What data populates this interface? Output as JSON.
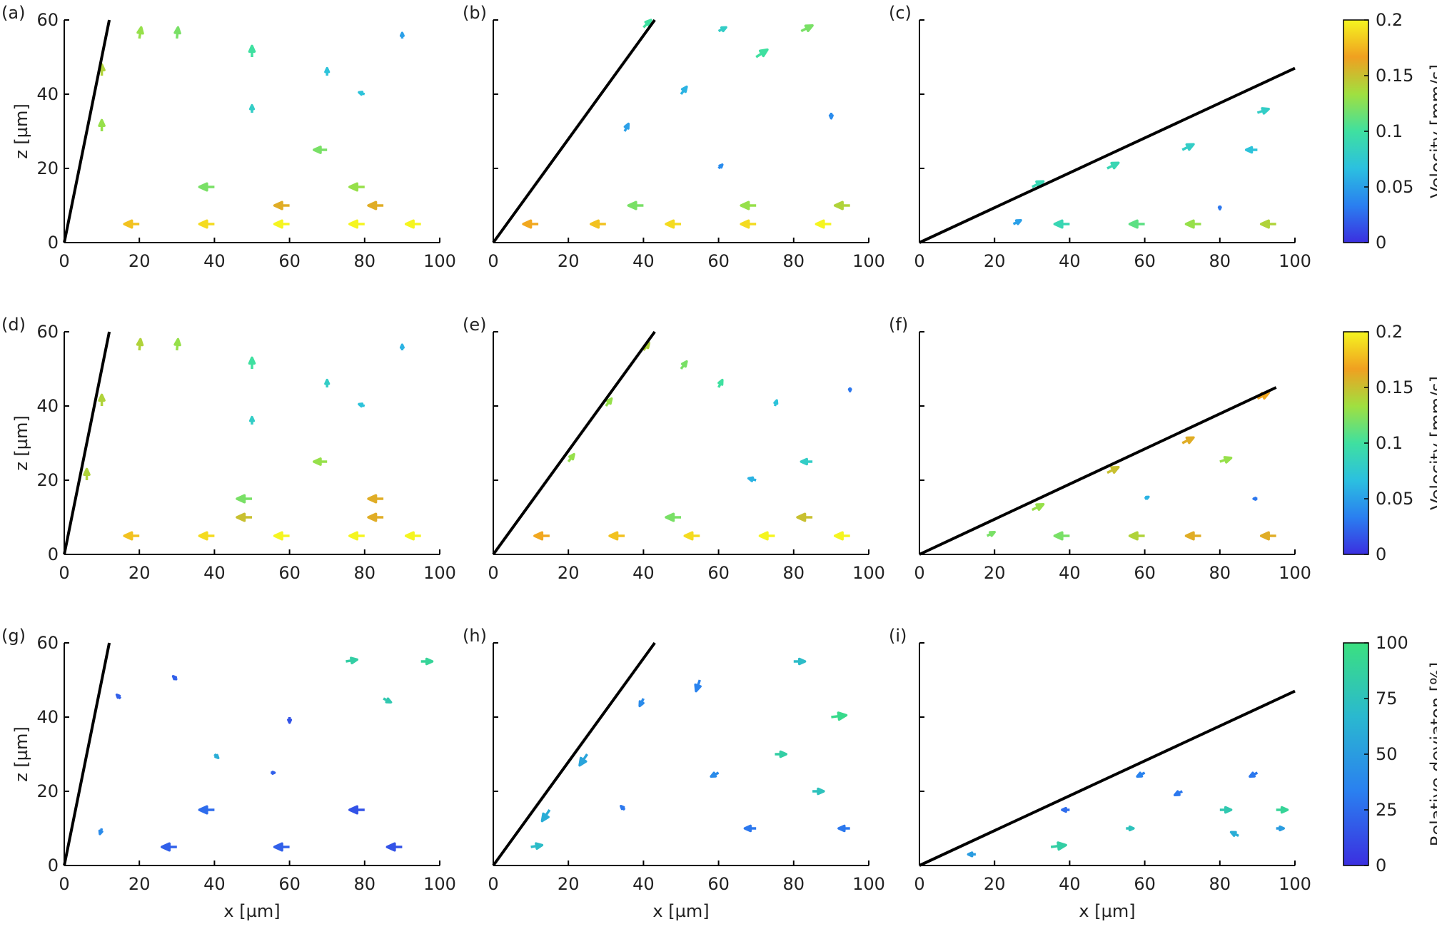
{
  "chart_data": [
    {
      "type": "quiver",
      "label": "(a)",
      "ylabel": "z [µm]",
      "xlim": [
        0,
        100
      ],
      "ylim": [
        0,
        60
      ],
      "xticks": [
        0,
        20,
        40,
        60,
        80,
        100
      ],
      "yticks": [
        0,
        20,
        40,
        60
      ],
      "ytick_labels": true,
      "wall": [
        [
          0,
          0
        ],
        [
          12,
          60
        ]
      ],
      "wall_color": "#000000",
      "colorbar": 0,
      "arrows": [
        [
          20,
          5,
          -4,
          0,
          0.18
        ],
        [
          40,
          5,
          -4,
          0,
          0.19
        ],
        [
          60,
          5,
          -4,
          0,
          0.2
        ],
        [
          80,
          5,
          -4,
          0,
          0.2
        ],
        [
          95,
          5,
          -4,
          0,
          0.2
        ],
        [
          60,
          10,
          -4,
          0,
          0.16
        ],
        [
          85,
          10,
          -4,
          0,
          0.16
        ],
        [
          40,
          15,
          -4,
          0,
          0.12
        ],
        [
          80,
          15,
          -4,
          0,
          0.13
        ],
        [
          70,
          25,
          -3.5,
          0,
          0.12
        ],
        [
          10,
          30,
          0,
          3,
          0.13
        ],
        [
          10,
          45,
          0,
          3,
          0.14
        ],
        [
          20,
          55,
          0.5,
          3,
          0.13
        ],
        [
          30,
          55,
          0.3,
          3,
          0.12
        ],
        [
          50,
          50,
          0,
          3,
          0.1
        ],
        [
          70,
          45,
          0,
          2,
          0.07
        ],
        [
          90,
          55,
          0,
          1.5,
          0.05
        ],
        [
          50,
          35,
          0,
          2,
          0.08
        ],
        [
          80,
          40,
          -1.5,
          0.5,
          0.07
        ]
      ]
    },
    {
      "type": "quiver",
      "label": "(b)",
      "xlim": [
        0,
        100
      ],
      "ylim": [
        0,
        60
      ],
      "xticks": [
        0,
        20,
        40,
        60,
        80,
        100
      ],
      "yticks": [
        0,
        20,
        40,
        60
      ],
      "ytick_labels": false,
      "wall": [
        [
          0,
          0
        ],
        [
          43,
          60
        ]
      ],
      "wall_color": "#000000",
      "colorbar": 0,
      "arrows": [
        [
          12,
          5,
          -4,
          0,
          0.17
        ],
        [
          30,
          5,
          -4,
          0,
          0.18
        ],
        [
          50,
          5,
          -4,
          0,
          0.19
        ],
        [
          70,
          5,
          -4,
          0,
          0.19
        ],
        [
          90,
          5,
          -4,
          0,
          0.2
        ],
        [
          40,
          10,
          -4,
          0,
          0.12
        ],
        [
          70,
          10,
          -4,
          0,
          0.13
        ],
        [
          95,
          10,
          -4,
          0,
          0.14
        ],
        [
          35,
          30,
          1,
          2,
          0.05
        ],
        [
          50,
          40,
          1.5,
          2,
          0.06
        ],
        [
          70,
          50,
          3,
          2,
          0.1
        ],
        [
          82,
          57,
          3,
          1.5,
          0.12
        ],
        [
          40,
          58,
          2,
          2,
          0.1
        ],
        [
          60,
          57,
          2,
          1,
          0.08
        ],
        [
          90,
          35,
          0,
          -1.5,
          0.04
        ],
        [
          60,
          20,
          1,
          1,
          0.04
        ]
      ]
    },
    {
      "type": "quiver",
      "label": "(c)",
      "xlim": [
        0,
        100
      ],
      "ylim": [
        0,
        60
      ],
      "xticks": [
        0,
        20,
        40,
        60,
        80,
        100
      ],
      "yticks": [
        0,
        20,
        40,
        60
      ],
      "ytick_labels": false,
      "wall": [
        [
          0,
          0
        ],
        [
          100,
          47
        ]
      ],
      "wall_color": "#000000",
      "colorbar": 0,
      "arrows": [
        [
          40,
          5,
          -4,
          0,
          0.09
        ],
        [
          60,
          5,
          -4,
          0,
          0.11
        ],
        [
          75,
          5,
          -4,
          0,
          0.13
        ],
        [
          95,
          5,
          -4,
          0,
          0.14
        ],
        [
          30,
          15,
          3,
          1.5,
          0.09
        ],
        [
          50,
          20,
          3,
          1.5,
          0.09
        ],
        [
          70,
          25,
          3,
          1.5,
          0.08
        ],
        [
          90,
          35,
          3,
          1,
          0.08
        ],
        [
          90,
          25,
          -3,
          0,
          0.07
        ],
        [
          80,
          10,
          0,
          -1,
          0.03
        ],
        [
          25,
          5,
          2,
          1,
          0.05
        ]
      ]
    },
    {
      "type": "quiver",
      "label": "(d)",
      "ylabel": "z [µm]",
      "xlim": [
        0,
        100
      ],
      "ylim": [
        0,
        60
      ],
      "xticks": [
        0,
        20,
        40,
        60,
        80,
        100
      ],
      "yticks": [
        0,
        20,
        40,
        60
      ],
      "ytick_labels": true,
      "wall": [
        [
          0,
          0
        ],
        [
          12,
          60
        ]
      ],
      "wall_color": "#000000",
      "colorbar": 1,
      "arrows": [
        [
          20,
          5,
          -4,
          0,
          0.18
        ],
        [
          40,
          5,
          -4,
          0,
          0.19
        ],
        [
          60,
          5,
          -4,
          0,
          0.2
        ],
        [
          80,
          5,
          -4,
          0,
          0.2
        ],
        [
          95,
          5,
          -4,
          0,
          0.2
        ],
        [
          50,
          10,
          -4,
          0,
          0.15
        ],
        [
          85,
          10,
          -4,
          0,
          0.16
        ],
        [
          50,
          15,
          -4,
          0,
          0.12
        ],
        [
          85,
          15,
          -4,
          0,
          0.16
        ],
        [
          70,
          25,
          -3.5,
          0,
          0.13
        ],
        [
          6,
          20,
          0,
          3,
          0.14
        ],
        [
          10,
          40,
          0,
          3,
          0.14
        ],
        [
          20,
          55,
          0.3,
          3,
          0.14
        ],
        [
          30,
          55,
          0.3,
          3,
          0.13
        ],
        [
          50,
          50,
          0,
          3,
          0.1
        ],
        [
          70,
          45,
          0,
          2,
          0.08
        ],
        [
          90,
          55,
          0,
          1.5,
          0.06
        ],
        [
          50,
          35,
          0,
          2,
          0.08
        ],
        [
          80,
          40,
          -1.5,
          0.5,
          0.07
        ]
      ]
    },
    {
      "type": "quiver",
      "label": "(e)",
      "xlim": [
        0,
        100
      ],
      "ylim": [
        0,
        60
      ],
      "xticks": [
        0,
        20,
        40,
        60,
        80,
        100
      ],
      "yticks": [
        0,
        20,
        40,
        60
      ],
      "ytick_labels": false,
      "wall": [
        [
          0,
          0
        ],
        [
          43,
          60
        ]
      ],
      "wall_color": "#000000",
      "colorbar": 1,
      "arrows": [
        [
          15,
          5,
          -4,
          0,
          0.17
        ],
        [
          35,
          5,
          -4,
          0,
          0.18
        ],
        [
          55,
          5,
          -4,
          0,
          0.19
        ],
        [
          75,
          5,
          -4,
          0,
          0.2
        ],
        [
          95,
          5,
          -4,
          0,
          0.2
        ],
        [
          50,
          10,
          -4,
          0,
          0.12
        ],
        [
          85,
          10,
          -4,
          0,
          0.15
        ],
        [
          20,
          25,
          1.5,
          2,
          0.13
        ],
        [
          30,
          40,
          1.5,
          2,
          0.13
        ],
        [
          40,
          55,
          1.5,
          2,
          0.14
        ],
        [
          50,
          50,
          1.5,
          2,
          0.12
        ],
        [
          60,
          45,
          1,
          2,
          0.1
        ],
        [
          75,
          40,
          0.5,
          1.5,
          0.07
        ],
        [
          95,
          45,
          0,
          -1,
          0.03
        ],
        [
          70,
          20,
          -2,
          0.5,
          0.06
        ],
        [
          85,
          25,
          -3,
          0,
          0.08
        ]
      ]
    },
    {
      "type": "quiver",
      "label": "(f)",
      "xlim": [
        0,
        100
      ],
      "ylim": [
        0,
        60
      ],
      "xticks": [
        0,
        20,
        40,
        60,
        80,
        100
      ],
      "yticks": [
        0,
        20,
        40,
        60
      ],
      "ytick_labels": false,
      "wall": [
        [
          0,
          0
        ],
        [
          95,
          45
        ]
      ],
      "wall_color": "#000000",
      "colorbar": 1,
      "arrows": [
        [
          40,
          5,
          -4,
          0,
          0.12
        ],
        [
          60,
          5,
          -4,
          0,
          0.14
        ],
        [
          75,
          5,
          -4,
          0,
          0.16
        ],
        [
          95,
          5,
          -4,
          0,
          0.16
        ],
        [
          30,
          12,
          3,
          1.5,
          0.13
        ],
        [
          50,
          22,
          3,
          1.5,
          0.15
        ],
        [
          70,
          30,
          3,
          1.5,
          0.16
        ],
        [
          90,
          42,
          3,
          1.5,
          0.17
        ],
        [
          80,
          25,
          3,
          1,
          0.13
        ],
        [
          90,
          15,
          -1,
          0,
          0.03
        ],
        [
          60,
          15,
          1,
          0.5,
          0.06
        ],
        [
          18,
          5,
          2,
          1,
          0.12
        ]
      ]
    },
    {
      "type": "quiver",
      "label": "(g)",
      "xlabel": "x [µm]",
      "ylabel": "z [µm]",
      "xlim": [
        0,
        100
      ],
      "ylim": [
        0,
        60
      ],
      "xticks": [
        0,
        20,
        40,
        60,
        80,
        100
      ],
      "yticks": [
        0,
        20,
        40,
        60
      ],
      "ytick_labels": true,
      "wall": [
        [
          0,
          0
        ],
        [
          12,
          60
        ]
      ],
      "wall_color": "#000000",
      "colorbar": 2,
      "arrows": [
        [
          30,
          5,
          -4,
          0,
          20
        ],
        [
          60,
          5,
          -4,
          0,
          20
        ],
        [
          90,
          5,
          -4,
          0,
          15
        ],
        [
          40,
          15,
          -4,
          0,
          25
        ],
        [
          80,
          15,
          -4,
          0,
          15
        ],
        [
          75,
          55,
          3,
          0.5,
          85
        ],
        [
          95,
          55,
          3,
          0,
          90
        ],
        [
          15,
          45,
          -1,
          1,
          20
        ],
        [
          40,
          30,
          1,
          -1,
          60
        ],
        [
          60,
          40,
          0,
          -1.5,
          15
        ],
        [
          85,
          45,
          2,
          -1,
          80
        ],
        [
          10,
          10,
          -0.5,
          -1.5,
          40
        ],
        [
          55,
          25,
          1,
          0,
          20
        ],
        [
          30,
          50,
          -1,
          1,
          20
        ]
      ]
    },
    {
      "type": "quiver",
      "label": "(h)",
      "xlabel": "x [µm]",
      "xlim": [
        0,
        100
      ],
      "ylim": [
        0,
        60
      ],
      "xticks": [
        0,
        20,
        40,
        60,
        80,
        100
      ],
      "yticks": [
        0,
        20,
        40,
        60
      ],
      "ytick_labels": false,
      "wall": [
        [
          0,
          0
        ],
        [
          43,
          60
        ]
      ],
      "wall_color": "#000000",
      "colorbar": 2,
      "arrows": [
        [
          10,
          5,
          3,
          0.5,
          70
        ],
        [
          15,
          15,
          -2,
          -3,
          60
        ],
        [
          25,
          30,
          -2,
          -3,
          55
        ],
        [
          40,
          45,
          -1,
          -2,
          40
        ],
        [
          55,
          50,
          -1,
          -3,
          35
        ],
        [
          75,
          30,
          3,
          0,
          85
        ],
        [
          90,
          40,
          4,
          0.5,
          95
        ],
        [
          85,
          20,
          3,
          0,
          75
        ],
        [
          60,
          25,
          -2,
          -1,
          40
        ],
        [
          95,
          10,
          -3,
          0,
          30
        ],
        [
          70,
          10,
          -3,
          0,
          30
        ],
        [
          80,
          55,
          3,
          0,
          70
        ],
        [
          35,
          15,
          -1,
          1,
          30
        ]
      ]
    },
    {
      "type": "quiver",
      "label": "(i)",
      "xlabel": "x [µm]",
      "xlim": [
        0,
        100
      ],
      "ylim": [
        0,
        60
      ],
      "xticks": [
        0,
        20,
        40,
        60,
        80,
        100
      ],
      "yticks": [
        0,
        20,
        40,
        60
      ],
      "ytick_labels": false,
      "wall": [
        [
          0,
          0
        ],
        [
          100,
          47
        ]
      ],
      "wall_color": "#000000",
      "colorbar": 2,
      "arrows": [
        [
          15,
          3,
          -2,
          0,
          50
        ],
        [
          35,
          5,
          4,
          0.5,
          85
        ],
        [
          55,
          10,
          2,
          0,
          75
        ],
        [
          80,
          15,
          3,
          0,
          80
        ],
        [
          95,
          15,
          3,
          0,
          90
        ],
        [
          85,
          8,
          -2,
          1,
          60
        ],
        [
          70,
          20,
          -2,
          -1,
          30
        ],
        [
          90,
          25,
          -2,
          -1,
          30
        ],
        [
          60,
          25,
          -2,
          -1,
          35
        ],
        [
          95,
          10,
          2,
          0,
          50
        ],
        [
          40,
          15,
          -2,
          0,
          25
        ]
      ]
    }
  ],
  "colorbars": [
    {
      "title": "Velocity [mm/s]",
      "lim": [
        0,
        0.2
      ],
      "ticks": [
        0,
        0.05,
        0.1,
        0.15,
        0.2
      ],
      "colors": [
        "#3b2fe0",
        "#2a7ff0",
        "#2bc0e0",
        "#3fe0a0",
        "#a0e040",
        "#f0a020",
        "#f5f520"
      ]
    },
    {
      "title": "Velocity [mm/s]",
      "lim": [
        0,
        0.2
      ],
      "ticks": [
        0,
        0.05,
        0.1,
        0.15,
        0.2
      ],
      "colors": [
        "#3b2fe0",
        "#2a7ff0",
        "#2bc0e0",
        "#3fe0a0",
        "#a0e040",
        "#f0a020",
        "#f5f520"
      ]
    },
    {
      "title": "Relative deviaton [%]",
      "lim": [
        0,
        100
      ],
      "ticks": [
        0,
        25,
        50,
        75,
        100
      ],
      "colors": [
        "#3b2fe0",
        "#2a80f0",
        "#2ab8d0",
        "#3be080"
      ]
    }
  ]
}
